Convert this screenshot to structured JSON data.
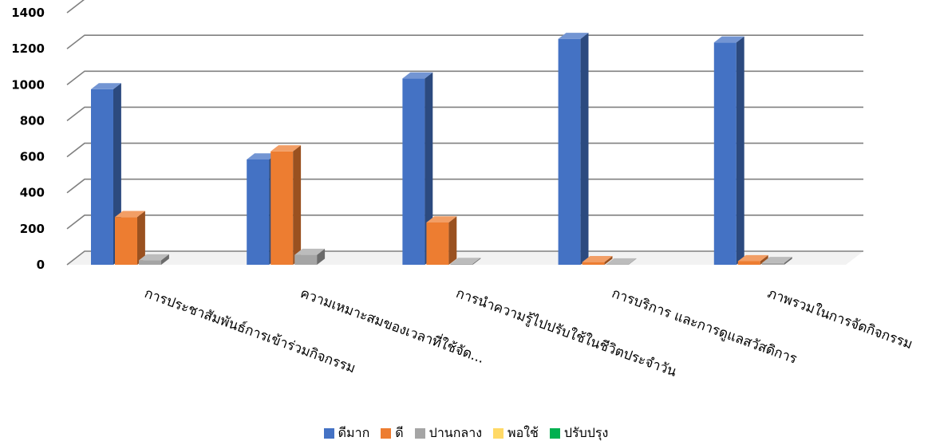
{
  "chart_data": {
    "type": "bar",
    "title": "",
    "xlabel": "",
    "ylabel": "",
    "ylim": [
      0,
      1400
    ],
    "yticks": [
      0,
      200,
      400,
      600,
      800,
      1000,
      1200,
      1400
    ],
    "grid": true,
    "legend_position": "bottom",
    "categories": [
      "การประชาสัมพันธ์การเข้าร่วมกิจกรรม",
      "ความเหมาะสมของเวลาที่ใช้จัด...",
      "การนำความรู้ไปปรับใช้ในชีวิตประจำวัน",
      "การบริการ และการดูแลสวัสดิการ",
      "ภาพรวมในการจัดกิจกรรม"
    ],
    "series": [
      {
        "name": "ดีมาก",
        "color": "#4472C4",
        "values": [
          975,
          585,
          1035,
          1255,
          1235
        ]
      },
      {
        "name": "ดี",
        "color": "#ED7D31",
        "values": [
          265,
          630,
          235,
          15,
          20
        ]
      },
      {
        "name": "ปานกลาง",
        "color": "#A5A5A5",
        "values": [
          25,
          55,
          5,
          2,
          10
        ]
      },
      {
        "name": "พอใช้",
        "color": "#FFD966",
        "values": [
          0,
          0,
          0,
          0,
          0
        ]
      },
      {
        "name": "ปรับปรุง",
        "color": "#00B050",
        "values": [
          0,
          0,
          0,
          0,
          0
        ]
      }
    ]
  }
}
